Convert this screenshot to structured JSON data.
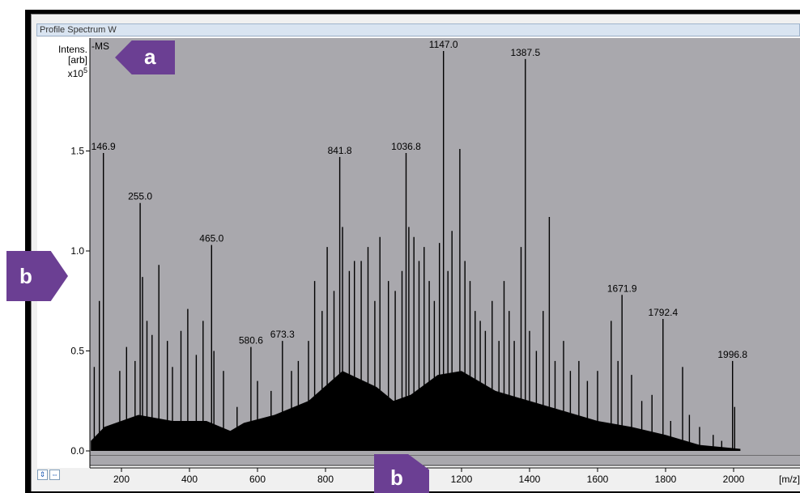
{
  "window": {
    "title": "Profile Spectrum W"
  },
  "callouts": {
    "a": "a",
    "b_left": "b",
    "b_bottom": "b"
  },
  "chart_data": {
    "type": "bar",
    "ylabel_lines": [
      "Intens.",
      "[arb]",
      "x10"
    ],
    "ylabel_exponent": "5",
    "series_label": "-MS",
    "xlabel": "[m/z]",
    "xlim": [
      100,
      2020
    ],
    "ylim": [
      -0.05,
      1.9
    ],
    "x_ticks": [
      200,
      400,
      600,
      800,
      1000,
      1200,
      1400,
      1600,
      1800,
      2000
    ],
    "y_ticks": [
      0.0,
      0.5,
      1.0,
      1.5
    ],
    "y_tick_labels": [
      "0.0",
      "0.5",
      "1.0",
      "1.5"
    ],
    "labeled_peaks": [
      {
        "mz": 146.9,
        "intensity": 1.49
      },
      {
        "mz": 255.0,
        "intensity": 1.24
      },
      {
        "mz": 465.0,
        "intensity": 1.03
      },
      {
        "mz": 580.6,
        "intensity": 0.52
      },
      {
        "mz": 673.3,
        "intensity": 0.55
      },
      {
        "mz": 841.8,
        "intensity": 1.47
      },
      {
        "mz": 1036.8,
        "intensity": 1.49
      },
      {
        "mz": 1147.0,
        "intensity": 2.0
      },
      {
        "mz": 1387.5,
        "intensity": 1.96
      },
      {
        "mz": 1671.9,
        "intensity": 0.78
      },
      {
        "mz": 1792.4,
        "intensity": 0.66
      },
      {
        "mz": 1996.8,
        "intensity": 0.45
      }
    ],
    "peak_label_text": [
      "146.9",
      "255.0",
      "465.0",
      "580.6",
      "673.3",
      "841.8",
      "1036.8",
      "1147.0",
      "1387.5",
      "1671.9",
      "1792.4",
      "1996.8"
    ],
    "other_peaks": [
      {
        "mz": 120,
        "intensity": 0.42
      },
      {
        "mz": 135,
        "intensity": 0.75
      },
      {
        "mz": 195,
        "intensity": 0.4
      },
      {
        "mz": 215,
        "intensity": 0.52
      },
      {
        "mz": 240,
        "intensity": 0.45
      },
      {
        "mz": 262,
        "intensity": 0.87
      },
      {
        "mz": 275,
        "intensity": 0.65
      },
      {
        "mz": 290,
        "intensity": 0.58
      },
      {
        "mz": 310,
        "intensity": 0.93
      },
      {
        "mz": 335,
        "intensity": 0.55
      },
      {
        "mz": 350,
        "intensity": 0.42
      },
      {
        "mz": 375,
        "intensity": 0.6
      },
      {
        "mz": 395,
        "intensity": 0.71
      },
      {
        "mz": 420,
        "intensity": 0.48
      },
      {
        "mz": 440,
        "intensity": 0.65
      },
      {
        "mz": 472,
        "intensity": 0.5
      },
      {
        "mz": 500,
        "intensity": 0.4
      },
      {
        "mz": 540,
        "intensity": 0.22
      },
      {
        "mz": 600,
        "intensity": 0.35
      },
      {
        "mz": 640,
        "intensity": 0.3
      },
      {
        "mz": 700,
        "intensity": 0.4
      },
      {
        "mz": 720,
        "intensity": 0.45
      },
      {
        "mz": 750,
        "intensity": 0.55
      },
      {
        "mz": 768,
        "intensity": 0.85
      },
      {
        "mz": 790,
        "intensity": 0.7
      },
      {
        "mz": 805,
        "intensity": 1.02
      },
      {
        "mz": 825,
        "intensity": 0.8
      },
      {
        "mz": 850,
        "intensity": 1.12
      },
      {
        "mz": 870,
        "intensity": 0.9
      },
      {
        "mz": 885,
        "intensity": 0.95
      },
      {
        "mz": 905,
        "intensity": 0.95
      },
      {
        "mz": 925,
        "intensity": 1.02
      },
      {
        "mz": 945,
        "intensity": 0.75
      },
      {
        "mz": 960,
        "intensity": 1.07
      },
      {
        "mz": 985,
        "intensity": 0.85
      },
      {
        "mz": 1005,
        "intensity": 0.8
      },
      {
        "mz": 1025,
        "intensity": 0.9
      },
      {
        "mz": 1045,
        "intensity": 1.12
      },
      {
        "mz": 1060,
        "intensity": 1.07
      },
      {
        "mz": 1075,
        "intensity": 0.95
      },
      {
        "mz": 1090,
        "intensity": 1.02
      },
      {
        "mz": 1105,
        "intensity": 0.85
      },
      {
        "mz": 1120,
        "intensity": 0.75
      },
      {
        "mz": 1135,
        "intensity": 1.04
      },
      {
        "mz": 1160,
        "intensity": 0.9
      },
      {
        "mz": 1172,
        "intensity": 1.1
      },
      {
        "mz": 1195,
        "intensity": 1.51
      },
      {
        "mz": 1210,
        "intensity": 0.95
      },
      {
        "mz": 1225,
        "intensity": 0.85
      },
      {
        "mz": 1240,
        "intensity": 0.7
      },
      {
        "mz": 1255,
        "intensity": 0.65
      },
      {
        "mz": 1270,
        "intensity": 0.6
      },
      {
        "mz": 1290,
        "intensity": 0.75
      },
      {
        "mz": 1310,
        "intensity": 0.55
      },
      {
        "mz": 1325,
        "intensity": 0.85
      },
      {
        "mz": 1340,
        "intensity": 0.7
      },
      {
        "mz": 1355,
        "intensity": 0.55
      },
      {
        "mz": 1375,
        "intensity": 1.02
      },
      {
        "mz": 1400,
        "intensity": 0.6
      },
      {
        "mz": 1420,
        "intensity": 0.5
      },
      {
        "mz": 1440,
        "intensity": 0.7
      },
      {
        "mz": 1458,
        "intensity": 1.17
      },
      {
        "mz": 1475,
        "intensity": 0.45
      },
      {
        "mz": 1500,
        "intensity": 0.55
      },
      {
        "mz": 1520,
        "intensity": 0.4
      },
      {
        "mz": 1545,
        "intensity": 0.45
      },
      {
        "mz": 1570,
        "intensity": 0.35
      },
      {
        "mz": 1600,
        "intensity": 0.4
      },
      {
        "mz": 1640,
        "intensity": 0.65
      },
      {
        "mz": 1660,
        "intensity": 0.45
      },
      {
        "mz": 1700,
        "intensity": 0.38
      },
      {
        "mz": 1730,
        "intensity": 0.25
      },
      {
        "mz": 1760,
        "intensity": 0.28
      },
      {
        "mz": 1815,
        "intensity": 0.15
      },
      {
        "mz": 1850,
        "intensity": 0.42
      },
      {
        "mz": 1870,
        "intensity": 0.18
      },
      {
        "mz": 1900,
        "intensity": 0.12
      },
      {
        "mz": 1940,
        "intensity": 0.08
      },
      {
        "mz": 1965,
        "intensity": 0.05
      },
      {
        "mz": 2003,
        "intensity": 0.22
      }
    ],
    "background_envelope": [
      {
        "mz": 110,
        "intensity": 0.05
      },
      {
        "mz": 150,
        "intensity": 0.12
      },
      {
        "mz": 250,
        "intensity": 0.18
      },
      {
        "mz": 350,
        "intensity": 0.15
      },
      {
        "mz": 450,
        "intensity": 0.15
      },
      {
        "mz": 520,
        "intensity": 0.1
      },
      {
        "mz": 560,
        "intensity": 0.14
      },
      {
        "mz": 650,
        "intensity": 0.18
      },
      {
        "mz": 750,
        "intensity": 0.25
      },
      {
        "mz": 850,
        "intensity": 0.4
      },
      {
        "mz": 950,
        "intensity": 0.32
      },
      {
        "mz": 1000,
        "intensity": 0.25
      },
      {
        "mz": 1050,
        "intensity": 0.28
      },
      {
        "mz": 1130,
        "intensity": 0.38
      },
      {
        "mz": 1200,
        "intensity": 0.4
      },
      {
        "mz": 1300,
        "intensity": 0.3
      },
      {
        "mz": 1400,
        "intensity": 0.25
      },
      {
        "mz": 1500,
        "intensity": 0.2
      },
      {
        "mz": 1600,
        "intensity": 0.15
      },
      {
        "mz": 1700,
        "intensity": 0.12
      },
      {
        "mz": 1800,
        "intensity": 0.08
      },
      {
        "mz": 1900,
        "intensity": 0.03
      },
      {
        "mz": 2020,
        "intensity": 0.01
      }
    ],
    "colors": {
      "plot_background": "#a9a8ad",
      "peaks": "#000000",
      "callout": "#6b3f93"
    },
    "grid": false
  }
}
